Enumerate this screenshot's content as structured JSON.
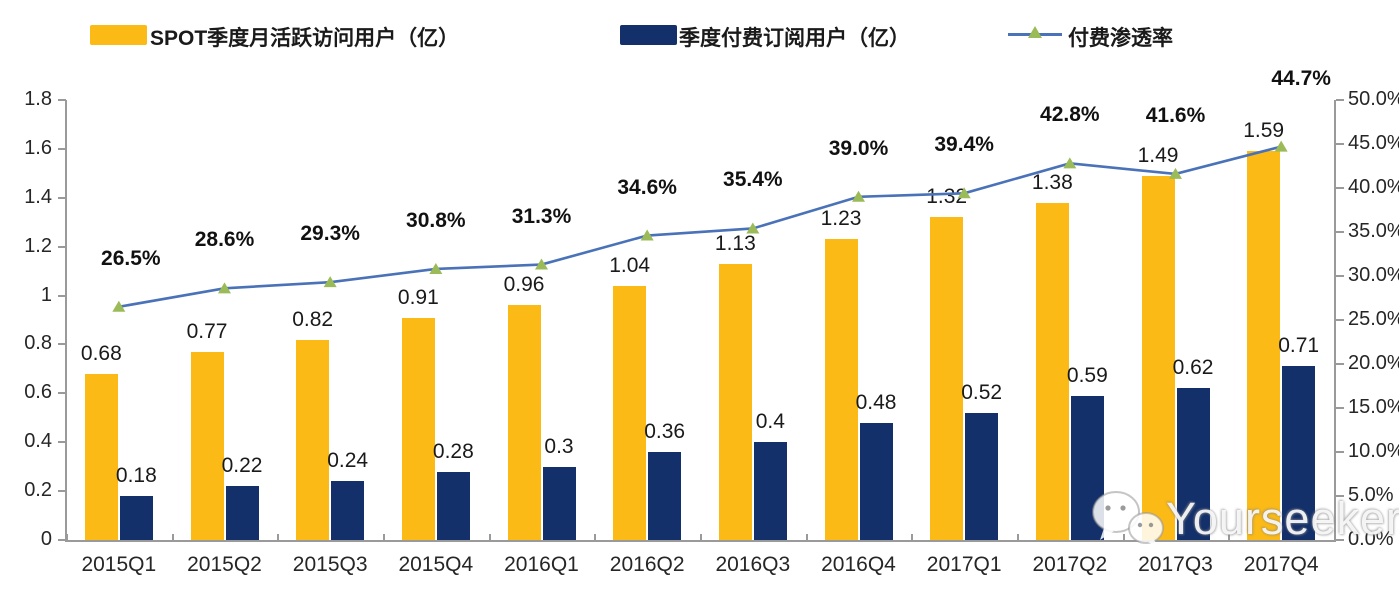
{
  "chart_data": {
    "type": "combo",
    "title": "",
    "categories": [
      "2015Q1",
      "2015Q2",
      "2015Q3",
      "2015Q4",
      "2016Q1",
      "2016Q2",
      "2016Q3",
      "2016Q4",
      "2017Q1",
      "2017Q2",
      "2017Q3",
      "2017Q4"
    ],
    "series": [
      {
        "name": "SPOT季度月活跃访问用户（亿）",
        "type": "bar",
        "axis": "left",
        "color": "#fbba16",
        "values": [
          0.68,
          0.77,
          0.82,
          0.91,
          0.96,
          1.04,
          1.13,
          1.23,
          1.32,
          1.38,
          1.49,
          1.59
        ],
        "labels": [
          "0.68",
          "0.77",
          "0.82",
          "0.91",
          "0.96",
          "1.04",
          "1.13",
          "1.23",
          "1.32",
          "1.38",
          "1.49",
          "1.59"
        ]
      },
      {
        "name": "季度付费订阅用户（亿）",
        "type": "bar",
        "axis": "left",
        "color": "#14306a",
        "values": [
          0.18,
          0.22,
          0.24,
          0.28,
          0.3,
          0.36,
          0.4,
          0.48,
          0.52,
          0.59,
          0.62,
          0.71
        ],
        "labels": [
          "0.18",
          "0.22",
          "0.24",
          "0.28",
          "0.3",
          "0.36",
          "0.4",
          "0.48",
          "0.52",
          "0.59",
          "0.62",
          "0.71"
        ]
      },
      {
        "name": "付费渗透率",
        "type": "line",
        "axis": "right",
        "color": "#4a72b8",
        "marker_color": "#9bbb59",
        "values": [
          26.5,
          28.6,
          29.3,
          30.8,
          31.3,
          34.6,
          35.4,
          39.0,
          39.4,
          42.8,
          41.6,
          44.7
        ],
        "labels": [
          "26.5%",
          "28.6%",
          "29.3%",
          "30.8%",
          "31.3%",
          "34.6%",
          "35.4%",
          "39.0%",
          "39.4%",
          "42.8%",
          "41.6%",
          "44.7%"
        ]
      }
    ],
    "left_axis": {
      "min": 0,
      "max": 1.8,
      "ticks": [
        "0",
        "0.2",
        "0.4",
        "0.6",
        "0.8",
        "1",
        "1.2",
        "1.4",
        "1.6",
        "1.8"
      ]
    },
    "right_axis": {
      "min": 0,
      "max": 50,
      "ticks": [
        "0.0%",
        "5.0%",
        "10.0%",
        "15.0%",
        "20.0%",
        "25.0%",
        "30.0%",
        "35.0%",
        "40.0%",
        "45.0%",
        "50.0%"
      ]
    },
    "grid": false,
    "legend_position": "top"
  },
  "watermark": {
    "text": "Yourseeker",
    "icon": "wechat-icon"
  }
}
